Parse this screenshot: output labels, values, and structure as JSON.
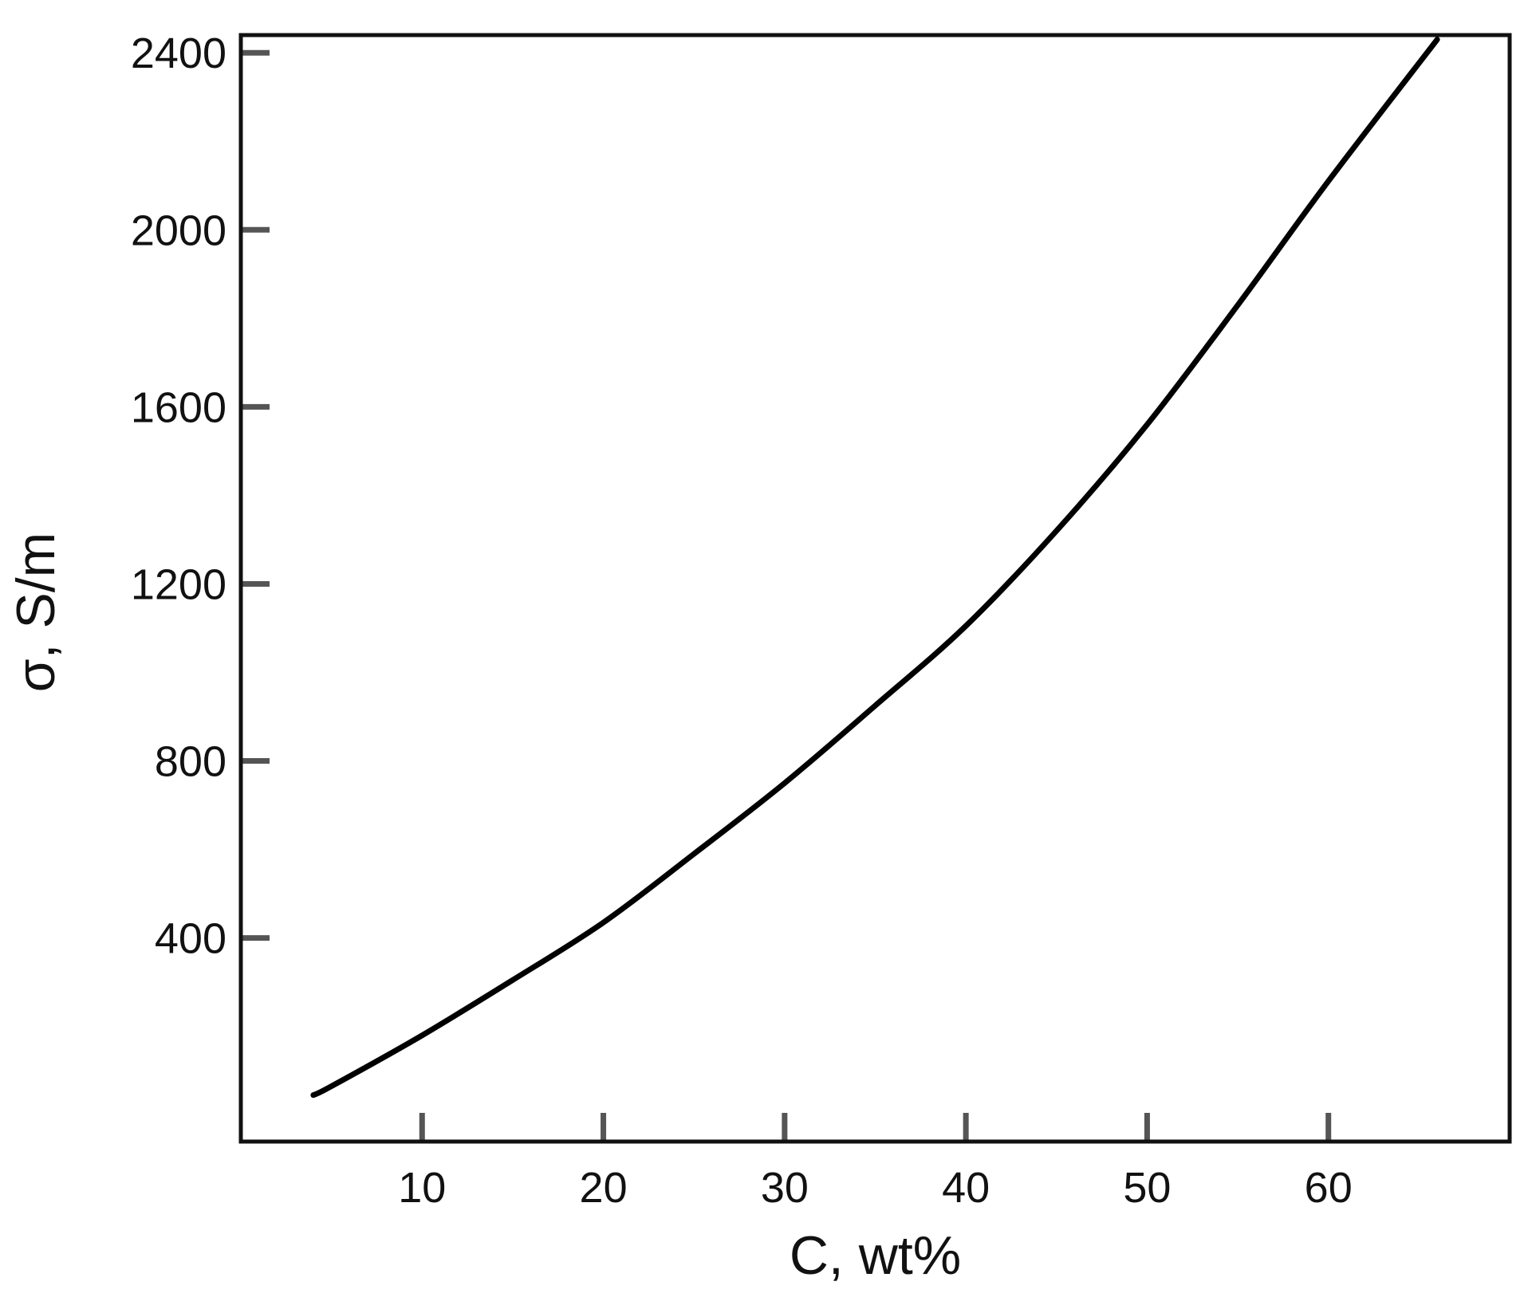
{
  "chart_data": {
    "type": "line",
    "title": "",
    "xlabel": "C, wt%",
    "ylabel": "σ, S/m",
    "xlim": [
      0,
      70
    ],
    "ylim": [
      -60,
      2440
    ],
    "xticks": [
      10,
      20,
      30,
      40,
      50,
      60
    ],
    "yticks": [
      400,
      800,
      1200,
      1600,
      2000,
      2400
    ],
    "grid": false,
    "legend": "none",
    "line_color": "#000000",
    "series": [
      {
        "x": [
          4,
          5,
          10,
          15,
          20,
          25,
          30,
          35,
          40,
          45,
          50,
          55,
          60,
          66
        ],
        "y": [
          45,
          65,
          180,
          305,
          435,
          590,
          750,
          925,
          1105,
          1320,
          1560,
          1830,
          2110,
          2430
        ]
      }
    ]
  }
}
